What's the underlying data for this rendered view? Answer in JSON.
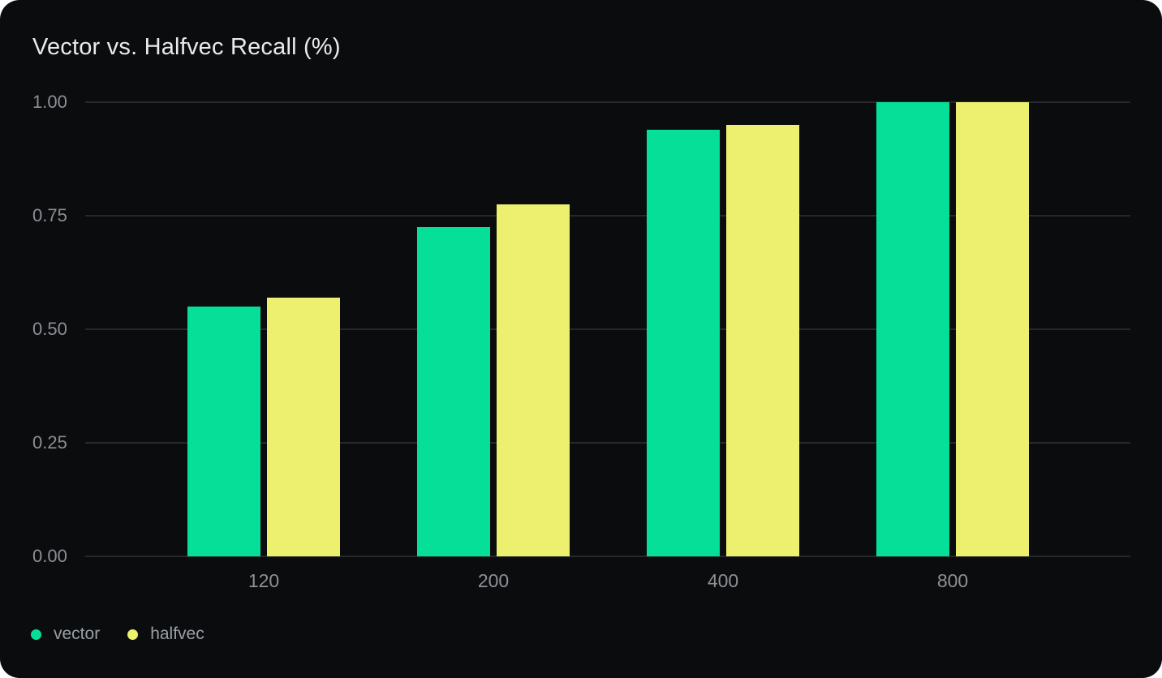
{
  "chart_data": {
    "type": "bar",
    "title": "Vector vs. Halfvec Recall (%)",
    "categories": [
      "120",
      "200",
      "400",
      "800"
    ],
    "series": [
      {
        "name": "vector",
        "color": "#06df97",
        "values": [
          0.55,
          0.725,
          0.94,
          1.0
        ]
      },
      {
        "name": "halfvec",
        "color": "#ecf06e",
        "values": [
          0.57,
          0.775,
          0.95,
          1.0
        ]
      }
    ],
    "ylim": [
      0,
      1
    ],
    "y_tick_labels": [
      "1.00",
      "0.75",
      "0.50",
      "0.25",
      "0.00"
    ],
    "grid": true,
    "legend_position": "bottom-left",
    "colors": {
      "page_background": "#ffffff",
      "card_background": "#0b0c0d",
      "gridline": "#26282c",
      "title_text": "#e9eaec",
      "tick_text": "#8b8f95",
      "legend_text": "#9aa0a6"
    }
  }
}
